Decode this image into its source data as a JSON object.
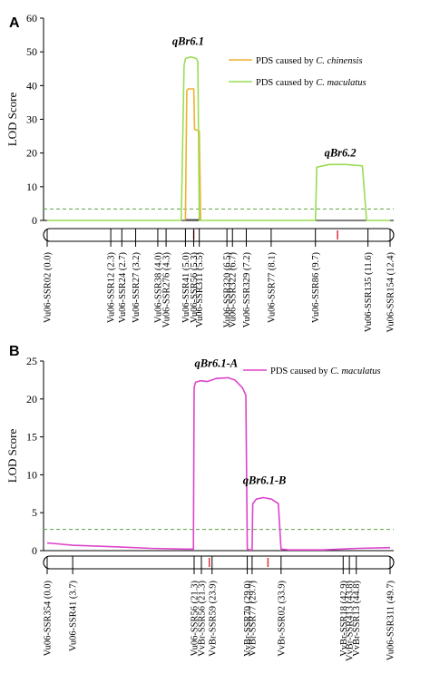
{
  "chart_data": [
    {
      "panel": "A",
      "type": "line",
      "ylabel": "LOD Score",
      "ylim": [
        0,
        60
      ],
      "yticks": [
        "0",
        "10",
        "20",
        "30",
        "40",
        "50",
        "60"
      ],
      "cm_range": [
        0,
        12.4
      ],
      "threshold": 3.4,
      "legend_placement": "top-right",
      "colors": {
        "chinensis": "#f0b030",
        "maculatus": "#99dd55",
        "threshold": "#5fa040"
      },
      "legend": [
        {
          "prefix": "PDS caused by ",
          "species": "C. chinensis"
        },
        {
          "prefix": "PDS caused by ",
          "species": "C. maculatus"
        }
      ],
      "series": [
        {
          "name": "PDS caused by C. chinensis",
          "x": [
            5.0,
            5.05,
            5.1,
            5.3,
            5.33,
            5.5,
            5.55
          ],
          "y": [
            0,
            38.5,
            39,
            39,
            27,
            26.5,
            0
          ]
        },
        {
          "name": "PDS caused by C. maculatus",
          "x": [
            0,
            4.85,
            4.95,
            5.0,
            5.2,
            5.4,
            5.45,
            5.5,
            9.7,
            9.75,
            10.2,
            10.8,
            11.4,
            11.55,
            12.4
          ],
          "y": [
            0,
            0,
            46,
            48,
            48.5,
            48,
            47,
            0,
            0,
            15.8,
            16.6,
            16.6,
            16.2,
            0,
            0
          ]
        }
      ],
      "annotations": [
        {
          "text": "qBr6.1",
          "x": 5.1,
          "y": 52
        },
        {
          "text": "qBr6.2",
          "x": 10.6,
          "y": 19
        }
      ],
      "red_marks": [
        5.3,
        10.5
      ],
      "markers": [
        {
          "label": "Vu06-SSR02 (0.0)",
          "pos": 0.0
        },
        {
          "label": "Vu06-SSR12 (2.3)",
          "pos": 2.3
        },
        {
          "label": "Vu06-SSR24 (2.7)",
          "pos": 2.7
        },
        {
          "label": "Vu06-SSR27 (3.2)",
          "pos": 3.2
        },
        {
          "label": "Vu06-SSR38 (4.0)",
          "pos": 4.0
        },
        {
          "label": "Vu06-SSR276 (4.3)",
          "pos": 4.3
        },
        {
          "label": "Vu06-SSR41 (5.0)",
          "pos": 5.0
        },
        {
          "label": "Vu06-SSR56 (5.3)",
          "pos": 5.3
        },
        {
          "label": "Vu06-SSR311 (5.5)",
          "pos": 5.5
        },
        {
          "label": "Vu06-SSR320 (6.5)",
          "pos": 6.5
        },
        {
          "label": "Vu06-SSR322 (6.7)",
          "pos": 6.7
        },
        {
          "label": "Vu06-SSR329 (7.2)",
          "pos": 7.2
        },
        {
          "label": "Vu06-SSR77 (8.1)",
          "pos": 8.1
        },
        {
          "label": "Vu06-SSR86 (9.7)",
          "pos": 9.7
        },
        {
          "label": "Vu06-SSR135 (11.6)",
          "pos": 11.6
        },
        {
          "label": "Vu06-SSR154 (12.4)",
          "pos": 12.4
        }
      ]
    },
    {
      "panel": "B",
      "type": "line",
      "ylabel": "LOD Score",
      "ylim": [
        0,
        25
      ],
      "yticks": [
        "0",
        "5",
        "10",
        "15",
        "20",
        "25"
      ],
      "cm_range": [
        0,
        49.7
      ],
      "threshold": 2.8,
      "legend_placement": "top-right",
      "colors": {
        "maculatus": "#dd44cc",
        "threshold": "#5fa040"
      },
      "legend": [
        {
          "prefix": "PDS caused by ",
          "species": "C. maculatus"
        }
      ],
      "series": [
        {
          "name": "PDS caused by C. maculatus",
          "x": [
            0,
            1.5,
            3.7,
            10,
            15,
            20,
            21.2,
            21.3,
            21.5,
            22.2,
            23.2,
            24.5,
            26.2,
            27.2,
            28.3,
            28.8,
            29.0,
            29.3,
            29.6,
            29.7,
            29.8,
            30.3,
            31.3,
            32.5,
            33.5,
            33.9,
            35,
            40,
            45,
            49.7
          ],
          "y": [
            1.0,
            0.9,
            0.7,
            0.5,
            0.3,
            0.2,
            0.2,
            21.5,
            22.2,
            22.4,
            22.3,
            22.7,
            22.8,
            22.5,
            21.5,
            20.5,
            0.2,
            0.1,
            0.1,
            0.1,
            6.2,
            6.8,
            7.0,
            6.8,
            6.2,
            0.2,
            0.1,
            0.1,
            0.3,
            0.4
          ]
        }
      ],
      "annotations": [
        {
          "text": "qBr6.1-A",
          "x": 24.5,
          "y": 24.2
        },
        {
          "text": "qBr6.1-B",
          "x": 31.5,
          "y": 8.8
        }
      ],
      "red_marks": [
        23.5,
        32.0
      ],
      "markers": [
        {
          "label": "Vu06-SSR354 (0.0)",
          "pos": 0.0
        },
        {
          "label": "Vu06-SSR41 (3.7)",
          "pos": 3.7
        },
        {
          "label": "Vu06-SSR56 (21.3)",
          "pos": 21.3
        },
        {
          "label": "VvBr-SSR56 (21.3)",
          "pos": 21.3
        },
        {
          "label": "VvBr-SSR59 (23.9)",
          "pos": 23.9
        },
        {
          "label": "VvBr-SSR70 (29.0)",
          "pos": 29.0
        },
        {
          "label": "VvBr-SSR77 (29.7)",
          "pos": 29.7
        },
        {
          "label": "VvBr-SSR02 (33.9)",
          "pos": 33.9
        },
        {
          "label": "VvBr-SSR18 (42.9)",
          "pos": 42.9
        },
        {
          "label": "VvBr-SSR413 (43.8)",
          "pos": 43.8
        },
        {
          "label": "VvBr-SSR13 (44.8)",
          "pos": 44.8
        },
        {
          "label": "Vu06-SSR311 (49.7)",
          "pos": 49.7
        }
      ]
    }
  ]
}
